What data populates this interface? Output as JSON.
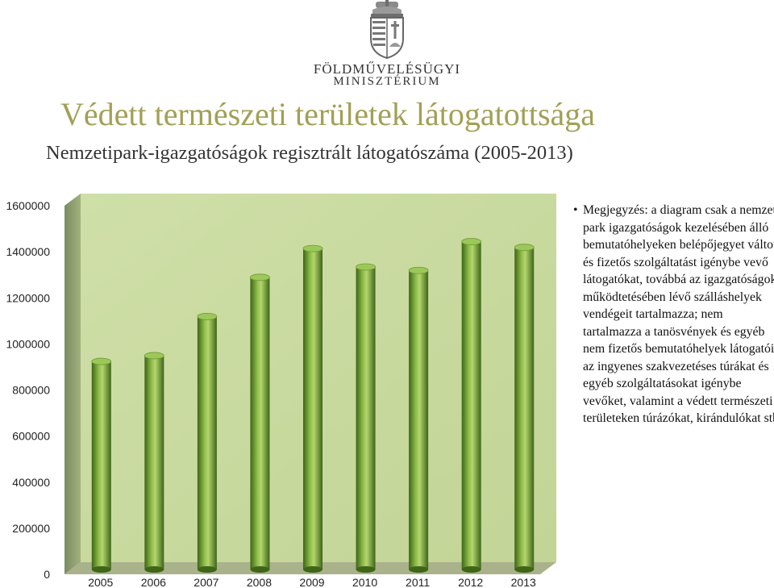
{
  "logo": {
    "line1": "FÖLDMŰVELÉSÜGYI",
    "line2": "MINISZTÉRIUM",
    "icon": "hungarian-coat-of-arms-icon"
  },
  "slide": {
    "title": "Védett természeti területek látogatottsága",
    "subtitle": "Nemzetipark-igazgatóságok regisztrált látogatószáma (2005-2013)"
  },
  "note": {
    "bullet": "•",
    "text": "Megjegyzés: a diagram csak a nemzeti park igazgatóságok kezelésében álló bemutatóhelyeken belépőjegyet váltott és fizetős szolgáltatást igénybe vevő látogatókat, továbbá az igazgatóságok működtetésében lévő szálláshelyek vendégeit tartalmazza; nem tartalmazza a tanösvények és egyéb nem fizetős bemutatóhelyek látogatóit, az ingyenes szakvezetéses túrákat és egyéb szolgáltatásokat igénybe vevőket, valamint a védett természeti területeken túrázókat, kirándulókat stb."
  },
  "colors": {
    "title": "#a2a055",
    "wall": "#c8d99e",
    "side_wall": "#8a9a6c",
    "floor": "#aab28c",
    "bar": "#6fa032",
    "bar_light": "#b4d66e",
    "bar_dark": "#3e6518"
  },
  "chart_data": {
    "type": "bar",
    "style": "3d-cylinder",
    "categories": [
      "2005",
      "2006",
      "2007",
      "2008",
      "2009",
      "2010",
      "2011",
      "2012",
      "2013"
    ],
    "values": [
      910000,
      935000,
      1105000,
      1275000,
      1400000,
      1320000,
      1305000,
      1430000,
      1405000
    ],
    "ylim": [
      0,
      1600000
    ],
    "yticks": [
      "0",
      "200000",
      "400000",
      "600000",
      "800000",
      "1000000",
      "1200000",
      "1400000",
      "1600000"
    ],
    "grid": false,
    "legend": "none"
  }
}
